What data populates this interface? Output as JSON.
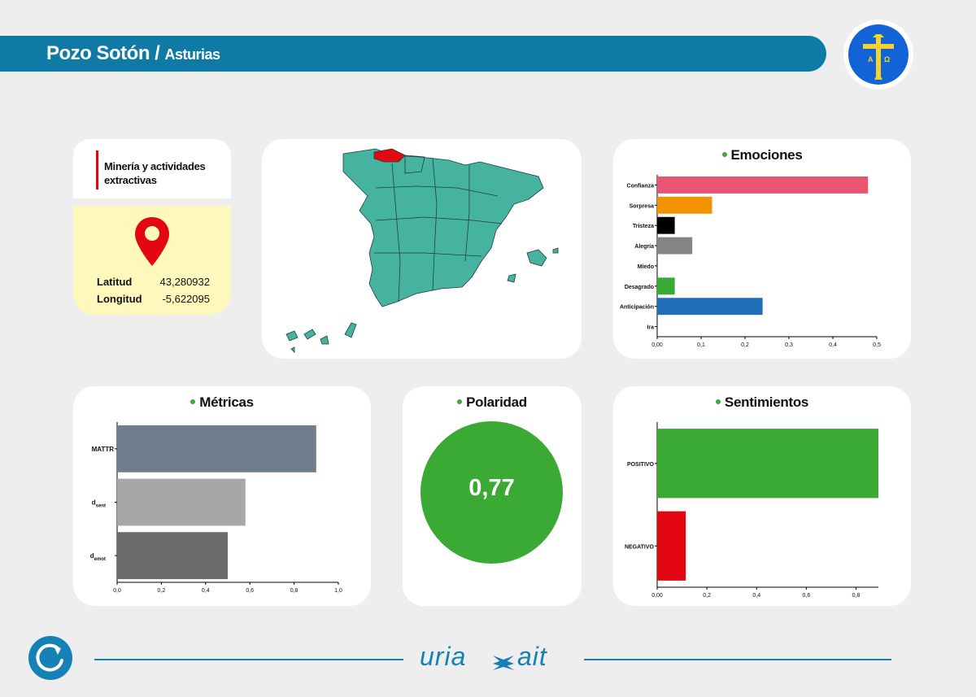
{
  "header": {
    "title": "Pozo Sotón",
    "separator": "/",
    "region": "Asturias"
  },
  "location": {
    "category": "Minería y actividades extractivas",
    "lat_label": "Latitud",
    "lat_value": "43,280932",
    "lon_label": "Longitud",
    "lon_value": "-5,622095"
  },
  "polarity": {
    "title": "Polaridad",
    "value": "0,77"
  },
  "footer": {
    "logo_text": "uria ait"
  },
  "colors": {
    "accent": "#0f7aa6",
    "green": "#3aaa35",
    "red": "#e30613",
    "highlight_region": "#e30613",
    "region_fill": "#45b3a0"
  },
  "icons": {
    "refresh": "refresh-icon",
    "pin": "map-pin-icon",
    "flag": "asturias-flag-icon"
  },
  "chart_data": [
    {
      "id": "emociones",
      "type": "bar",
      "orientation": "horizontal",
      "title": "Emociones",
      "categories": [
        "Confianza",
        "Sorpresa",
        "Tristeza",
        "Alegría",
        "Miedo",
        "Desagrado",
        "Anticipación",
        "Ira"
      ],
      "values": [
        0.48,
        0.125,
        0.04,
        0.08,
        0.0,
        0.04,
        0.24,
        0.0
      ],
      "colors": [
        "#ea5470",
        "#f39200",
        "#000000",
        "#858585",
        "#ea5470",
        "#3aaa35",
        "#1f6fb7",
        "#000000"
      ],
      "xlim": [
        0,
        0.5
      ],
      "xticks": [
        "0,00",
        "0,1",
        "0,2",
        "0,3",
        "0,4",
        "0,5"
      ]
    },
    {
      "id": "metricas",
      "type": "bar",
      "orientation": "horizontal",
      "title": "Métricas",
      "categories": [
        "MATTR",
        "d",
        "d"
      ],
      "subscripts": [
        "",
        "sent",
        "emot"
      ],
      "values": [
        0.9,
        0.58,
        0.5
      ],
      "colors": [
        "#6f7e8c",
        "#a8a6a6",
        "#6a6a6a"
      ],
      "xlim": [
        0,
        1.0
      ],
      "xticks": [
        "0,0",
        "0,2",
        "0,4",
        "0,6",
        "0,8",
        "1,0"
      ]
    },
    {
      "id": "sentimientos",
      "type": "bar",
      "orientation": "horizontal",
      "title": "Sentimientos",
      "categories": [
        "POSITIVO",
        "NEGATIVO"
      ],
      "values": [
        0.89,
        0.115
      ],
      "colors": [
        "#3aaa35",
        "#e30613"
      ],
      "xlim": [
        0,
        0.89
      ],
      "xticks": [
        "0,00",
        "0,2",
        "0,4",
        "0,6",
        "0,8"
      ],
      "xtick_values": [
        0,
        0.2,
        0.4,
        0.6,
        0.8
      ]
    }
  ]
}
